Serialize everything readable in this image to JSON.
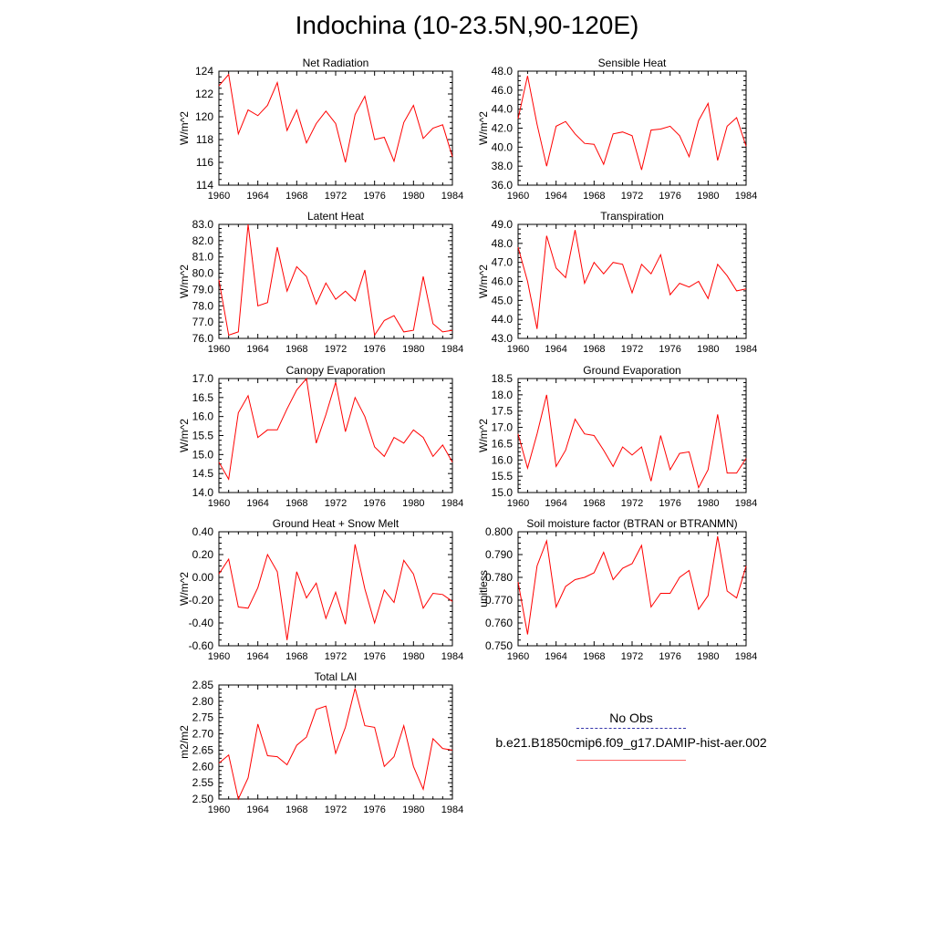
{
  "title": "Indochina (10-23.5N,90-120E)",
  "colors": {
    "model": "#ff0000",
    "obs": "#3333aa",
    "axis": "#000000"
  },
  "legend": {
    "obs_label": "No Obs",
    "model_label": "b.e21.B1850cmip6.f09_g17.DAMIP-hist-aer.002"
  },
  "chart_data": [
    {
      "type": "line",
      "title": "Net Radiation",
      "ylabel": "W/m^2",
      "xlim": [
        1960,
        1984
      ],
      "ylim": [
        114,
        124
      ],
      "xticks": [
        1960,
        1964,
        1968,
        1972,
        1976,
        1980,
        1984
      ],
      "yticks": [
        "114",
        "116",
        "118",
        "120",
        "122",
        "124"
      ],
      "x": [
        1960,
        1961,
        1962,
        1963,
        1964,
        1965,
        1966,
        1967,
        1968,
        1969,
        1970,
        1971,
        1972,
        1973,
        1974,
        1975,
        1976,
        1977,
        1978,
        1979,
        1980,
        1981,
        1982,
        1983,
        1984
      ],
      "series": [
        {
          "values": [
            122.7,
            123.7,
            118.5,
            120.6,
            120.1,
            121.0,
            123.0,
            118.8,
            120.6,
            117.7,
            119.4,
            120.5,
            119.4,
            116.0,
            120.2,
            121.8,
            118.0,
            118.2,
            116.1,
            119.5,
            121.0,
            118.1,
            119.0,
            119.3,
            116.5
          ]
        }
      ],
      "grid": false
    },
    {
      "type": "line",
      "title": "Sensible Heat",
      "ylabel": "W/m^2",
      "xlim": [
        1960,
        1984
      ],
      "ylim": [
        36,
        48
      ],
      "xticks": [
        1960,
        1964,
        1968,
        1972,
        1976,
        1980,
        1984
      ],
      "yticks": [
        "36.0",
        "38.0",
        "40.0",
        "42.0",
        "44.0",
        "46.0",
        "48.0"
      ],
      "x": [
        1960,
        1961,
        1962,
        1963,
        1964,
        1965,
        1966,
        1967,
        1968,
        1969,
        1970,
        1971,
        1972,
        1973,
        1974,
        1975,
        1976,
        1977,
        1978,
        1979,
        1980,
        1981,
        1982,
        1983,
        1984
      ],
      "series": [
        {
          "values": [
            43.0,
            47.5,
            42.4,
            38.0,
            42.2,
            42.7,
            41.4,
            40.4,
            40.3,
            38.2,
            41.4,
            41.6,
            41.2,
            37.6,
            41.8,
            41.9,
            42.2,
            41.2,
            39.0,
            42.8,
            44.6,
            38.6,
            42.2,
            43.1,
            40.1
          ]
        }
      ],
      "grid": false
    },
    {
      "type": "line",
      "title": "Latent Heat",
      "ylabel": "W/m^2",
      "xlim": [
        1960,
        1984
      ],
      "ylim": [
        76,
        83
      ],
      "xticks": [
        1960,
        1964,
        1968,
        1972,
        1976,
        1980,
        1984
      ],
      "yticks": [
        "76.0",
        "77.0",
        "78.0",
        "79.0",
        "80.0",
        "81.0",
        "82.0",
        "83.0"
      ],
      "x": [
        1960,
        1961,
        1962,
        1963,
        1964,
        1965,
        1966,
        1967,
        1968,
        1969,
        1970,
        1971,
        1972,
        1973,
        1974,
        1975,
        1976,
        1977,
        1978,
        1979,
        1980,
        1981,
        1982,
        1983,
        1984
      ],
      "series": [
        {
          "values": [
            79.6,
            76.2,
            76.4,
            83.0,
            78.0,
            78.2,
            81.6,
            78.9,
            80.4,
            79.8,
            78.1,
            79.4,
            78.4,
            78.9,
            78.3,
            80.2,
            76.2,
            77.1,
            77.4,
            76.4,
            76.5,
            79.8,
            76.9,
            76.4,
            76.5
          ]
        }
      ],
      "grid": false
    },
    {
      "type": "line",
      "title": "Transpiration",
      "ylabel": "W/m^2",
      "xlim": [
        1960,
        1984
      ],
      "ylim": [
        43,
        49
      ],
      "xticks": [
        1960,
        1964,
        1968,
        1972,
        1976,
        1980,
        1984
      ],
      "yticks": [
        "43.0",
        "44.0",
        "45.0",
        "46.0",
        "47.0",
        "48.0",
        "49.0"
      ],
      "x": [
        1960,
        1961,
        1962,
        1963,
        1964,
        1965,
        1966,
        1967,
        1968,
        1969,
        1970,
        1971,
        1972,
        1973,
        1974,
        1975,
        1976,
        1977,
        1978,
        1979,
        1980,
        1981,
        1982,
        1983,
        1984
      ],
      "series": [
        {
          "values": [
            47.8,
            46.0,
            43.5,
            48.4,
            46.7,
            46.2,
            48.7,
            45.9,
            47.0,
            46.4,
            47.0,
            46.9,
            45.4,
            46.9,
            46.4,
            47.4,
            45.3,
            45.9,
            45.7,
            46.0,
            45.1,
            46.9,
            46.3,
            45.5,
            45.6
          ]
        }
      ],
      "grid": false
    },
    {
      "type": "line",
      "title": "Canopy Evaporation",
      "ylabel": "W/m^2",
      "xlim": [
        1960,
        1984
      ],
      "ylim": [
        14,
        17
      ],
      "xticks": [
        1960,
        1964,
        1968,
        1972,
        1976,
        1980,
        1984
      ],
      "yticks": [
        "14.0",
        "14.5",
        "15.0",
        "15.5",
        "16.0",
        "16.5",
        "17.0"
      ],
      "x": [
        1960,
        1961,
        1962,
        1963,
        1964,
        1965,
        1966,
        1967,
        1968,
        1969,
        1970,
        1971,
        1972,
        1973,
        1974,
        1975,
        1976,
        1977,
        1978,
        1979,
        1980,
        1981,
        1982,
        1983,
        1984
      ],
      "series": [
        {
          "values": [
            14.8,
            14.35,
            16.1,
            16.55,
            15.45,
            15.65,
            15.65,
            16.2,
            16.7,
            17.0,
            15.3,
            16.05,
            16.9,
            15.6,
            16.5,
            16.0,
            15.2,
            14.95,
            15.45,
            15.3,
            15.65,
            15.45,
            14.95,
            15.25,
            14.8
          ]
        }
      ],
      "grid": false
    },
    {
      "type": "line",
      "title": "Ground Evaporation",
      "ylabel": "W/m^2",
      "xlim": [
        1960,
        1984
      ],
      "ylim": [
        15,
        18.5
      ],
      "xticks": [
        1960,
        1964,
        1968,
        1972,
        1976,
        1980,
        1984
      ],
      "yticks": [
        "15.0",
        "15.5",
        "16.0",
        "16.5",
        "17.0",
        "17.5",
        "18.0",
        "18.5"
      ],
      "x": [
        1960,
        1961,
        1962,
        1963,
        1964,
        1965,
        1966,
        1967,
        1968,
        1969,
        1970,
        1971,
        1972,
        1973,
        1974,
        1975,
        1976,
        1977,
        1978,
        1979,
        1980,
        1981,
        1982,
        1983,
        1984
      ],
      "series": [
        {
          "values": [
            16.8,
            15.75,
            16.8,
            18.0,
            15.8,
            16.3,
            17.25,
            16.8,
            16.75,
            16.3,
            15.8,
            16.4,
            16.15,
            16.4,
            15.35,
            16.75,
            15.7,
            16.2,
            16.25,
            15.15,
            15.7,
            17.4,
            15.6,
            15.6,
            16.05
          ]
        }
      ],
      "grid": false
    },
    {
      "type": "line",
      "title": "Ground Heat + Snow Melt",
      "ylabel": "W/m^2",
      "xlim": [
        1960,
        1984
      ],
      "ylim": [
        -0.6,
        0.4
      ],
      "xticks": [
        1960,
        1964,
        1968,
        1972,
        1976,
        1980,
        1984
      ],
      "yticks": [
        "-0.60",
        "-0.40",
        "-0.20",
        "0.00",
        "0.20",
        "0.40"
      ],
      "x": [
        1960,
        1961,
        1962,
        1963,
        1964,
        1965,
        1966,
        1967,
        1968,
        1969,
        1970,
        1971,
        1972,
        1973,
        1974,
        1975,
        1976,
        1977,
        1978,
        1979,
        1980,
        1981,
        1982,
        1983,
        1984
      ],
      "series": [
        {
          "values": [
            0.03,
            0.16,
            -0.26,
            -0.27,
            -0.09,
            0.2,
            0.05,
            -0.55,
            0.05,
            -0.18,
            -0.05,
            -0.36,
            -0.13,
            -0.41,
            0.29,
            -0.1,
            -0.4,
            -0.11,
            -0.22,
            0.15,
            0.03,
            -0.27,
            -0.14,
            -0.15,
            -0.21
          ]
        }
      ],
      "grid": false
    },
    {
      "type": "line",
      "title": "Soil moisture factor (BTRAN or BTRANMN)",
      "ylabel": "unitless",
      "xlim": [
        1960,
        1984
      ],
      "ylim": [
        0.75,
        0.8
      ],
      "xticks": [
        1960,
        1964,
        1968,
        1972,
        1976,
        1980,
        1984
      ],
      "yticks": [
        "0.750",
        "0.760",
        "0.770",
        "0.780",
        "0.790",
        "0.800"
      ],
      "x": [
        1960,
        1961,
        1962,
        1963,
        1964,
        1965,
        1966,
        1967,
        1968,
        1969,
        1970,
        1971,
        1972,
        1973,
        1974,
        1975,
        1976,
        1977,
        1978,
        1979,
        1980,
        1981,
        1982,
        1983,
        1984
      ],
      "series": [
        {
          "values": [
            0.778,
            0.755,
            0.785,
            0.796,
            0.767,
            0.776,
            0.779,
            0.78,
            0.782,
            0.791,
            0.779,
            0.784,
            0.786,
            0.794,
            0.767,
            0.773,
            0.773,
            0.78,
            0.783,
            0.766,
            0.772,
            0.798,
            0.774,
            0.771,
            0.785
          ]
        }
      ],
      "grid": false
    },
    {
      "type": "line",
      "title": "Total LAI",
      "ylabel": "m2/m2",
      "xlim": [
        1960,
        1984
      ],
      "ylim": [
        2.5,
        2.85
      ],
      "xticks": [
        1960,
        1964,
        1968,
        1972,
        1976,
        1980,
        1984
      ],
      "yticks": [
        "2.50",
        "2.55",
        "2.60",
        "2.65",
        "2.70",
        "2.75",
        "2.80",
        "2.85"
      ],
      "x": [
        1960,
        1961,
        1962,
        1963,
        1964,
        1965,
        1966,
        1967,
        1968,
        1969,
        1970,
        1971,
        1972,
        1973,
        1974,
        1975,
        1976,
        1977,
        1978,
        1979,
        1980,
        1981,
        1982,
        1983,
        1984
      ],
      "series": [
        {
          "values": [
            2.61,
            2.635,
            2.5,
            2.565,
            2.73,
            2.633,
            2.63,
            2.605,
            2.665,
            2.69,
            2.775,
            2.785,
            2.64,
            2.72,
            2.84,
            2.725,
            2.72,
            2.6,
            2.63,
            2.725,
            2.6,
            2.53,
            2.685,
            2.655,
            2.65
          ]
        }
      ],
      "grid": false
    }
  ]
}
